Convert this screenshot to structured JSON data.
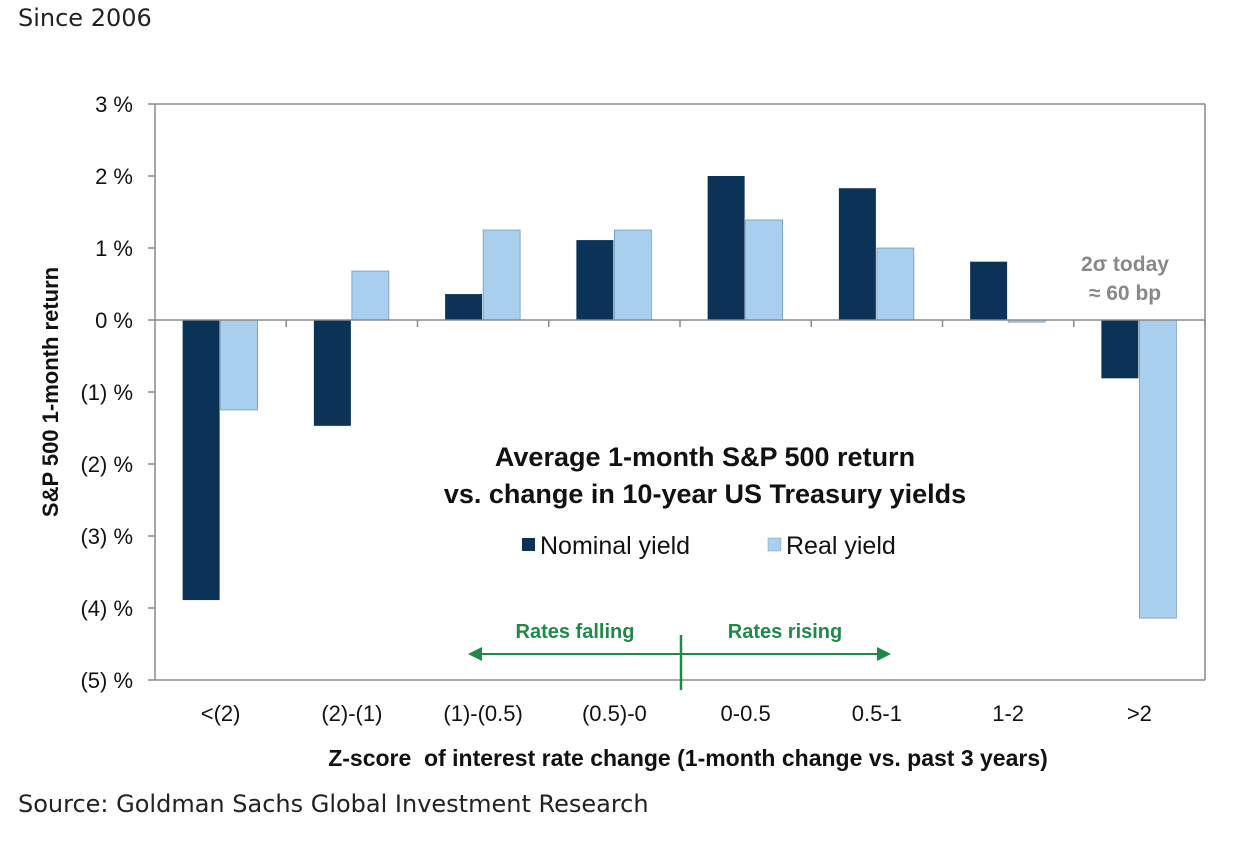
{
  "header": {
    "subtitle": "Since 2006"
  },
  "footer": {
    "source": "Source: Goldman Sachs Global Investment Research"
  },
  "chart_data": {
    "type": "bar",
    "title_line1": "Average 1-month S&P 500 return",
    "title_line2": "vs. change in 10-year US Treasury yields",
    "xlabel": "Z-score  of interest rate change (1-month change vs. past 3 years)",
    "ylabel": "S&P 500 1-month return",
    "ylim": [
      -5,
      3
    ],
    "yticks": [
      3,
      2,
      1,
      0,
      -1,
      -2,
      -3,
      -4,
      -5
    ],
    "ytick_labels": [
      "3 %",
      "2 %",
      "1 %",
      "0 %",
      "(1) %",
      "(2) %",
      "(3) %",
      "(4) %",
      "(5) %"
    ],
    "categories": [
      "<(2)",
      "(2)-(1)",
      "(1)-(0.5)",
      "(0.5)-0",
      "0-0.5",
      "0.5-1",
      "1-2",
      ">2"
    ],
    "series": [
      {
        "name": "Nominal yield",
        "color": "#0b3358",
        "values": [
          -3.89,
          -1.47,
          0.36,
          1.11,
          2.0,
          1.83,
          0.81,
          -0.81
        ]
      },
      {
        "name": "Real yield",
        "color": "#a9cfee",
        "values": [
          -1.25,
          0.68,
          1.25,
          1.25,
          1.39,
          1.0,
          -0.03,
          -4.14
        ]
      }
    ],
    "legend_position": "center",
    "annotations": {
      "rates_falling": "Rates falling",
      "rates_rising": "Rates rising",
      "today_line1": "2σ today",
      "today_line2": "≈ 60 bp",
      "arrow_color": "#1e8a45"
    }
  }
}
